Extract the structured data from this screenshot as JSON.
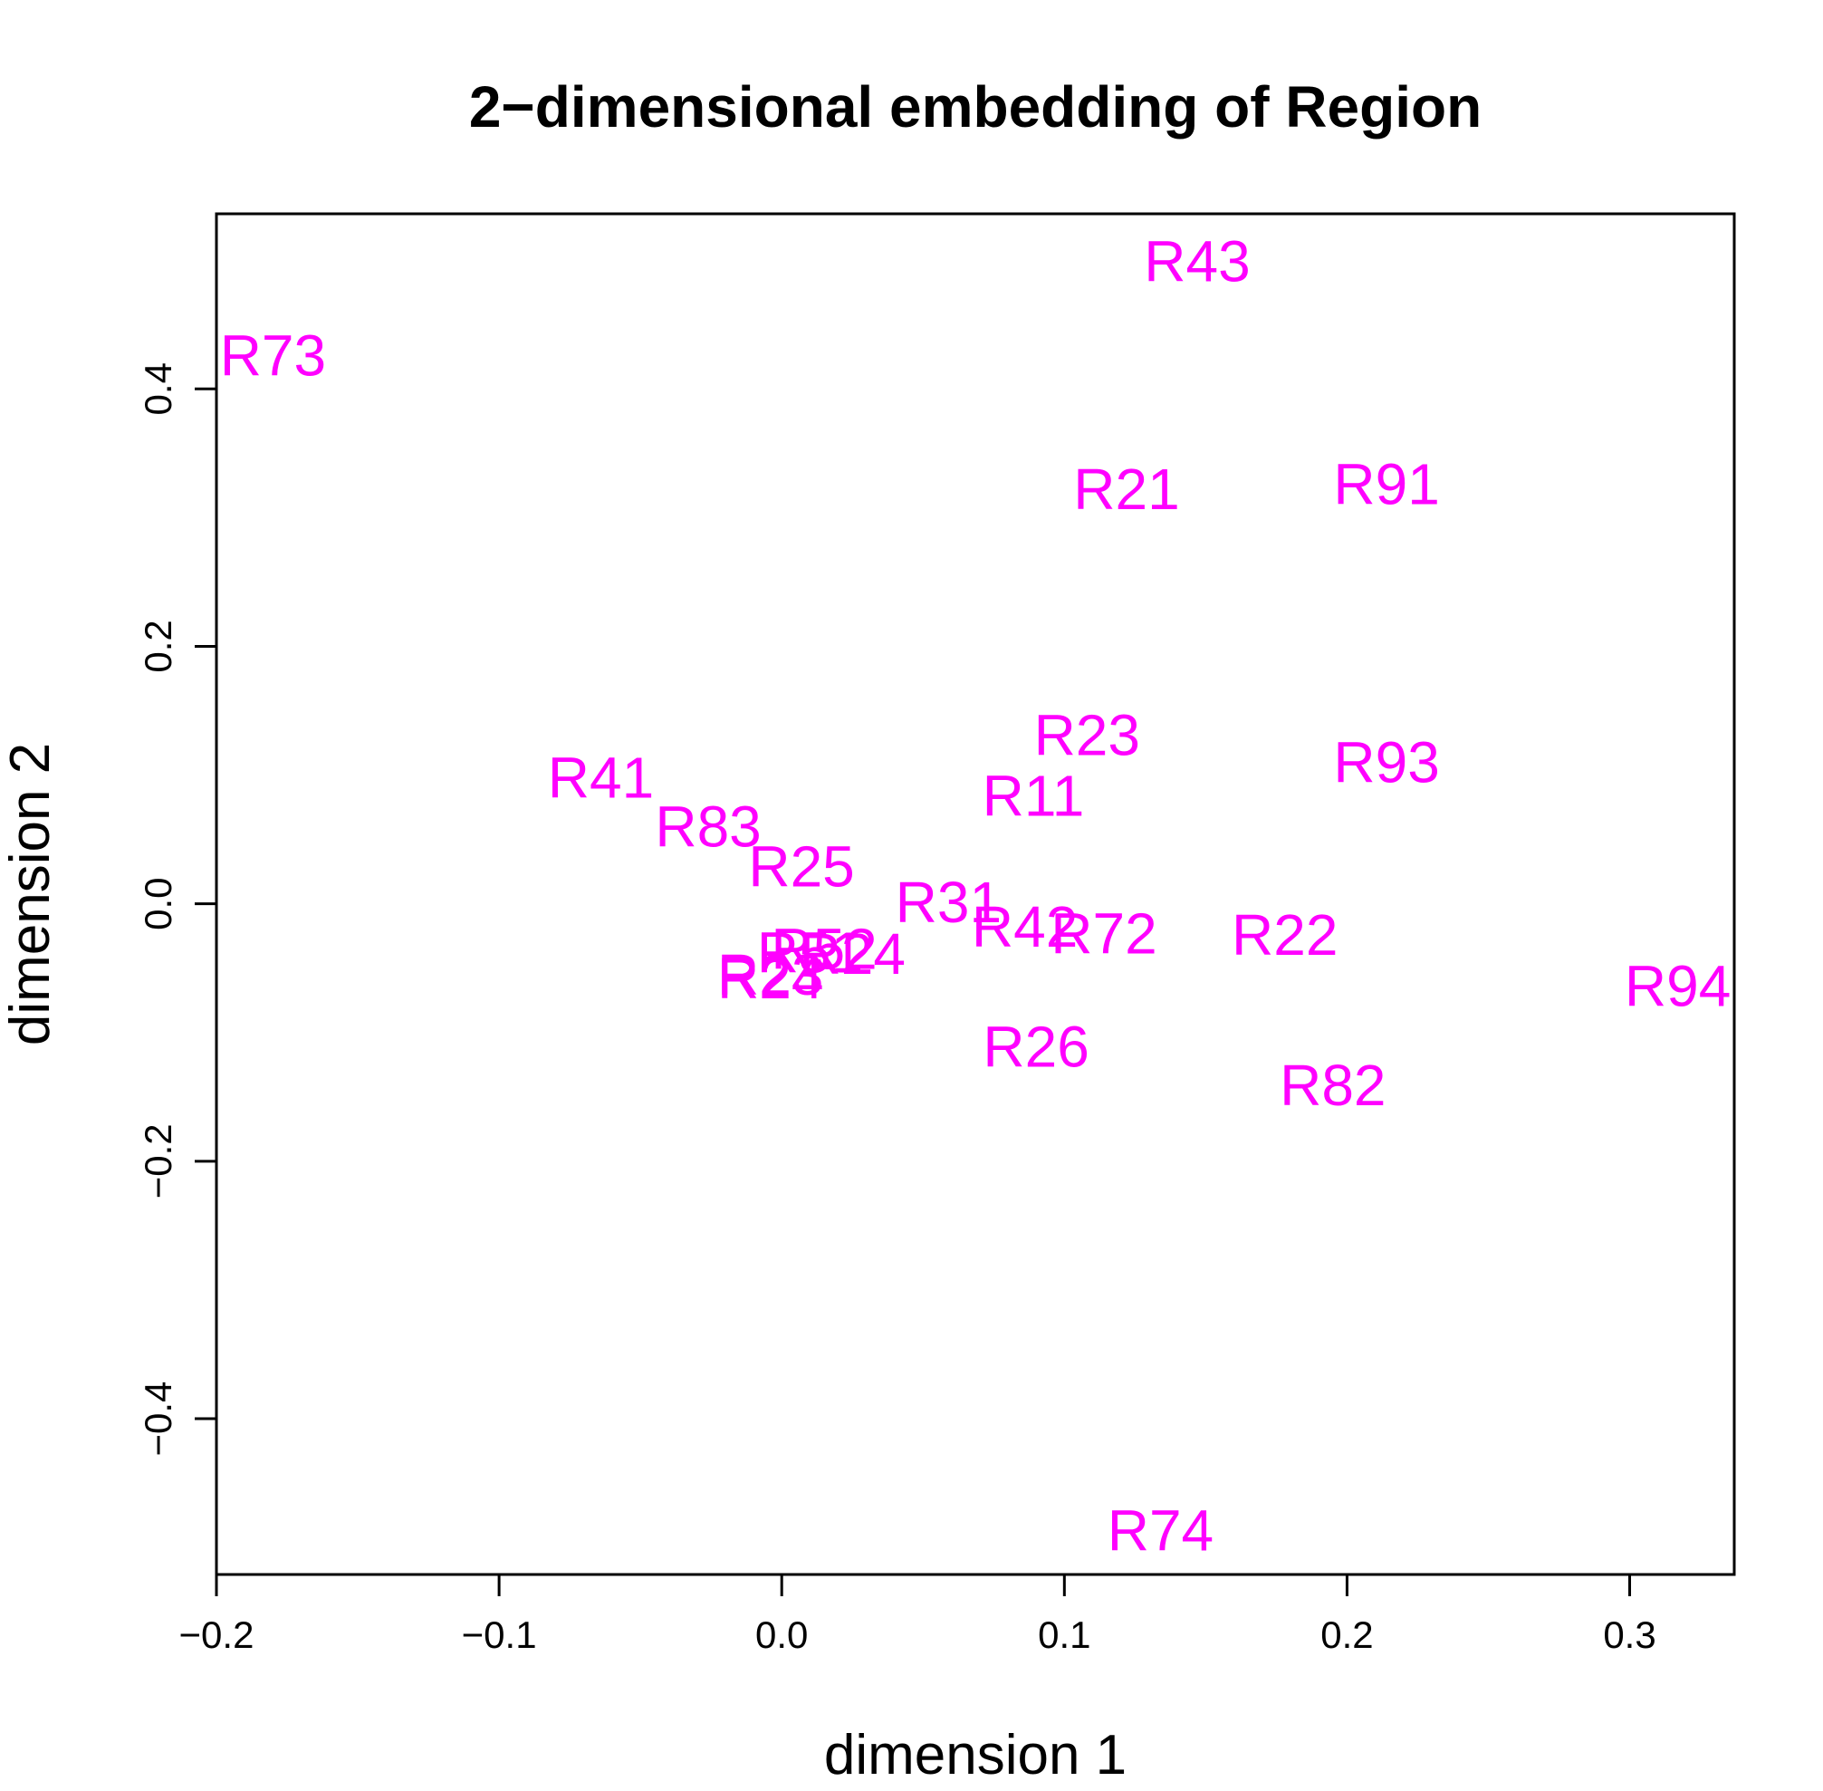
{
  "chart_data": {
    "type": "scatter",
    "title": "2−dimensional embedding of Region",
    "xlabel": "dimension 1",
    "ylabel": "dimension 2",
    "xlim": [
      -0.2,
      0.337
    ],
    "ylim": [
      -0.521,
      0.536
    ],
    "xticks": [
      -0.2,
      -0.1,
      0.0,
      0.1,
      0.2,
      0.3
    ],
    "xtick_labels": [
      "−0.2",
      "−0.1",
      "0.0",
      "0.1",
      "0.2",
      "0.3"
    ],
    "yticks": [
      -0.4,
      -0.2,
      0.0,
      0.2,
      0.4
    ],
    "ytick_labels": [
      "−0.4",
      "−0.2",
      "0.0",
      "0.2",
      "0.4"
    ],
    "grid": false,
    "label_color": "#FF00FF",
    "points": [
      {
        "label": "R73",
        "x": -0.18,
        "y": 0.426
      },
      {
        "label": "R43",
        "x": 0.147,
        "y": 0.499
      },
      {
        "label": "R21",
        "x": 0.122,
        "y": 0.322
      },
      {
        "label": "R91",
        "x": 0.214,
        "y": 0.326
      },
      {
        "label": "R23",
        "x": 0.108,
        "y": 0.131
      },
      {
        "label": "R93",
        "x": 0.214,
        "y": 0.11
      },
      {
        "label": "R41",
        "x": -0.064,
        "y": 0.098
      },
      {
        "label": "R11",
        "x": 0.089,
        "y": 0.084
      },
      {
        "label": "R83",
        "x": -0.026,
        "y": 0.06
      },
      {
        "label": "R25",
        "x": 0.007,
        "y": 0.029
      },
      {
        "label": "R31",
        "x": 0.059,
        "y": 0.001
      },
      {
        "label": "R42",
        "x": 0.086,
        "y": -0.018
      },
      {
        "label": "R72",
        "x": 0.114,
        "y": -0.023
      },
      {
        "label": "R22",
        "x": 0.178,
        "y": -0.024
      },
      {
        "label": "R94",
        "x": 0.317,
        "y": -0.064
      },
      {
        "label": "R52",
        "x": 0.015,
        "y": -0.035
      },
      {
        "label": "R24",
        "x": 0.025,
        "y": -0.039
      },
      {
        "label": "R51",
        "x": 0.01,
        "y": -0.038
      },
      {
        "label": "R23",
        "x": -0.004,
        "y": -0.055
      },
      {
        "label": "R24",
        "x": -0.004,
        "y": -0.058
      },
      {
        "label": "R26",
        "x": 0.09,
        "y": -0.111
      },
      {
        "label": "R82",
        "x": 0.195,
        "y": -0.141
      },
      {
        "label": "R74",
        "x": 0.134,
        "y": -0.487
      }
    ]
  }
}
